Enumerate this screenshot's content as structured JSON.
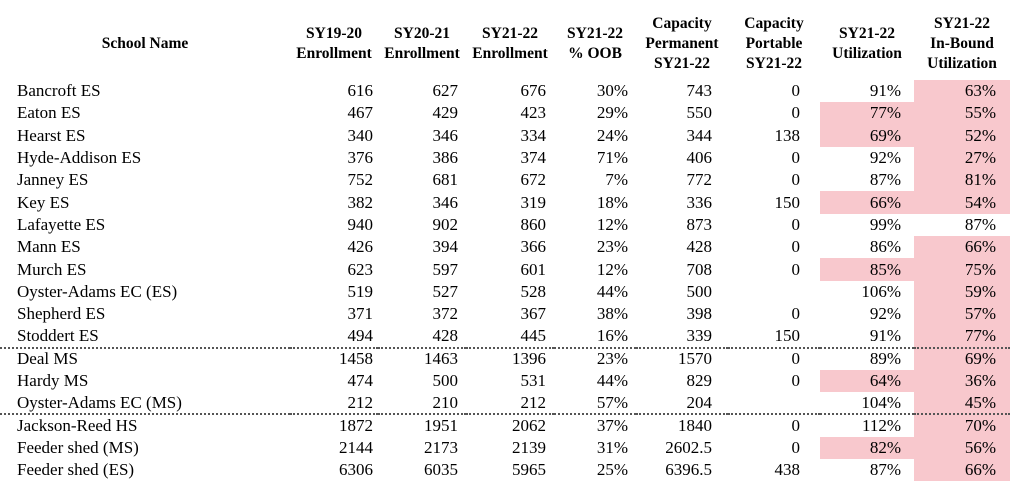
{
  "highlight_color": "#f8c8cd",
  "table": {
    "columns": [
      {
        "label": "School Name"
      },
      {
        "label": "SY19-20\nEnrollment"
      },
      {
        "label": "SY20-21\nEnrollment"
      },
      {
        "label": "SY21-22\nEnrollment"
      },
      {
        "label": "SY21-22\n% OOB"
      },
      {
        "label": "Capacity\nPermanent\nSY21-22"
      },
      {
        "label": "Capacity\nPortable\nSY21-22"
      },
      {
        "label": "SY21-22\nUtilization"
      },
      {
        "label": "SY21-22\nIn-Bound\nUtilization"
      }
    ],
    "rows": [
      {
        "school": "Bancroft ES",
        "enr_sy19_20": "616",
        "enr_sy20_21": "627",
        "enr_sy21_22": "676",
        "pct_oob": "30%",
        "cap_permanent": "743",
        "cap_portable": "0",
        "utilization": "91%",
        "inbound_utilization": "63%",
        "utilization_highlighted": false,
        "inbound_highlighted": true,
        "separator_after": false
      },
      {
        "school": "Eaton ES",
        "enr_sy19_20": "467",
        "enr_sy20_21": "429",
        "enr_sy21_22": "423",
        "pct_oob": "29%",
        "cap_permanent": "550",
        "cap_portable": "0",
        "utilization": "77%",
        "inbound_utilization": "55%",
        "utilization_highlighted": true,
        "inbound_highlighted": true,
        "separator_after": false
      },
      {
        "school": "Hearst ES",
        "enr_sy19_20": "340",
        "enr_sy20_21": "346",
        "enr_sy21_22": "334",
        "pct_oob": "24%",
        "cap_permanent": "344",
        "cap_portable": "138",
        "utilization": "69%",
        "inbound_utilization": "52%",
        "utilization_highlighted": true,
        "inbound_highlighted": true,
        "separator_after": false
      },
      {
        "school": "Hyde-Addison ES",
        "enr_sy19_20": "376",
        "enr_sy20_21": "386",
        "enr_sy21_22": "374",
        "pct_oob": "71%",
        "cap_permanent": "406",
        "cap_portable": "0",
        "utilization": "92%",
        "inbound_utilization": "27%",
        "utilization_highlighted": false,
        "inbound_highlighted": true,
        "separator_after": false
      },
      {
        "school": "Janney ES",
        "enr_sy19_20": "752",
        "enr_sy20_21": "681",
        "enr_sy21_22": "672",
        "pct_oob": "7%",
        "cap_permanent": "772",
        "cap_portable": "0",
        "utilization": "87%",
        "inbound_utilization": "81%",
        "utilization_highlighted": false,
        "inbound_highlighted": true,
        "separator_after": false
      },
      {
        "school": "Key ES",
        "enr_sy19_20": "382",
        "enr_sy20_21": "346",
        "enr_sy21_22": "319",
        "pct_oob": "18%",
        "cap_permanent": "336",
        "cap_portable": "150",
        "utilization": "66%",
        "inbound_utilization": "54%",
        "utilization_highlighted": true,
        "inbound_highlighted": true,
        "separator_after": false
      },
      {
        "school": "Lafayette ES",
        "enr_sy19_20": "940",
        "enr_sy20_21": "902",
        "enr_sy21_22": "860",
        "pct_oob": "12%",
        "cap_permanent": "873",
        "cap_portable": "0",
        "utilization": "99%",
        "inbound_utilization": "87%",
        "utilization_highlighted": false,
        "inbound_highlighted": false,
        "separator_after": false
      },
      {
        "school": "Mann ES",
        "enr_sy19_20": "426",
        "enr_sy20_21": "394",
        "enr_sy21_22": "366",
        "pct_oob": "23%",
        "cap_permanent": "428",
        "cap_portable": "0",
        "utilization": "86%",
        "inbound_utilization": "66%",
        "utilization_highlighted": false,
        "inbound_highlighted": true,
        "separator_after": false
      },
      {
        "school": "Murch ES",
        "enr_sy19_20": "623",
        "enr_sy20_21": "597",
        "enr_sy21_22": "601",
        "pct_oob": "12%",
        "cap_permanent": "708",
        "cap_portable": "0",
        "utilization": "85%",
        "inbound_utilization": "75%",
        "utilization_highlighted": true,
        "inbound_highlighted": true,
        "separator_after": false
      },
      {
        "school": "Oyster-Adams EC (ES)",
        "enr_sy19_20": "519",
        "enr_sy20_21": "527",
        "enr_sy21_22": "528",
        "pct_oob": "44%",
        "cap_permanent": "500",
        "cap_portable": "",
        "utilization": "106%",
        "inbound_utilization": "59%",
        "utilization_highlighted": false,
        "inbound_highlighted": true,
        "separator_after": false
      },
      {
        "school": "Shepherd ES",
        "enr_sy19_20": "371",
        "enr_sy20_21": "372",
        "enr_sy21_22": "367",
        "pct_oob": "38%",
        "cap_permanent": "398",
        "cap_portable": "0",
        "utilization": "92%",
        "inbound_utilization": "57%",
        "utilization_highlighted": false,
        "inbound_highlighted": true,
        "separator_after": false
      },
      {
        "school": "Stoddert ES",
        "enr_sy19_20": "494",
        "enr_sy20_21": "428",
        "enr_sy21_22": "445",
        "pct_oob": "16%",
        "cap_permanent": "339",
        "cap_portable": "150",
        "utilization": "91%",
        "inbound_utilization": "77%",
        "utilization_highlighted": false,
        "inbound_highlighted": true,
        "separator_after": true
      },
      {
        "school": "Deal MS",
        "enr_sy19_20": "1458",
        "enr_sy20_21": "1463",
        "enr_sy21_22": "1396",
        "pct_oob": "23%",
        "cap_permanent": "1570",
        "cap_portable": "0",
        "utilization": "89%",
        "inbound_utilization": "69%",
        "utilization_highlighted": false,
        "inbound_highlighted": true,
        "separator_after": false
      },
      {
        "school": "Hardy MS",
        "enr_sy19_20": "474",
        "enr_sy20_21": "500",
        "enr_sy21_22": "531",
        "pct_oob": "44%",
        "cap_permanent": "829",
        "cap_portable": "0",
        "utilization": "64%",
        "inbound_utilization": "36%",
        "utilization_highlighted": true,
        "inbound_highlighted": true,
        "separator_after": false
      },
      {
        "school": "Oyster-Adams EC (MS)",
        "enr_sy19_20": "212",
        "enr_sy20_21": "210",
        "enr_sy21_22": "212",
        "pct_oob": "57%",
        "cap_permanent": "204",
        "cap_portable": "",
        "utilization": "104%",
        "inbound_utilization": "45%",
        "utilization_highlighted": false,
        "inbound_highlighted": true,
        "separator_after": true
      },
      {
        "school": "Jackson-Reed HS",
        "enr_sy19_20": "1872",
        "enr_sy20_21": "1951",
        "enr_sy21_22": "2062",
        "pct_oob": "37%",
        "cap_permanent": "1840",
        "cap_portable": "0",
        "utilization": "112%",
        "inbound_utilization": "70%",
        "utilization_highlighted": false,
        "inbound_highlighted": true,
        "separator_after": false
      },
      {
        "school": "Feeder shed (MS)",
        "enr_sy19_20": "2144",
        "enr_sy20_21": "2173",
        "enr_sy21_22": "2139",
        "pct_oob": "31%",
        "cap_permanent": "2602.5",
        "cap_portable": "0",
        "utilization": "82%",
        "inbound_utilization": "56%",
        "utilization_highlighted": true,
        "inbound_highlighted": true,
        "separator_after": false
      },
      {
        "school": "Feeder shed (ES)",
        "enr_sy19_20": "6306",
        "enr_sy20_21": "6035",
        "enr_sy21_22": "5965",
        "pct_oob": "25%",
        "cap_permanent": "6396.5",
        "cap_portable": "438",
        "utilization": "87%",
        "inbound_utilization": "66%",
        "utilization_highlighted": false,
        "inbound_highlighted": true,
        "separator_after": false
      }
    ]
  }
}
